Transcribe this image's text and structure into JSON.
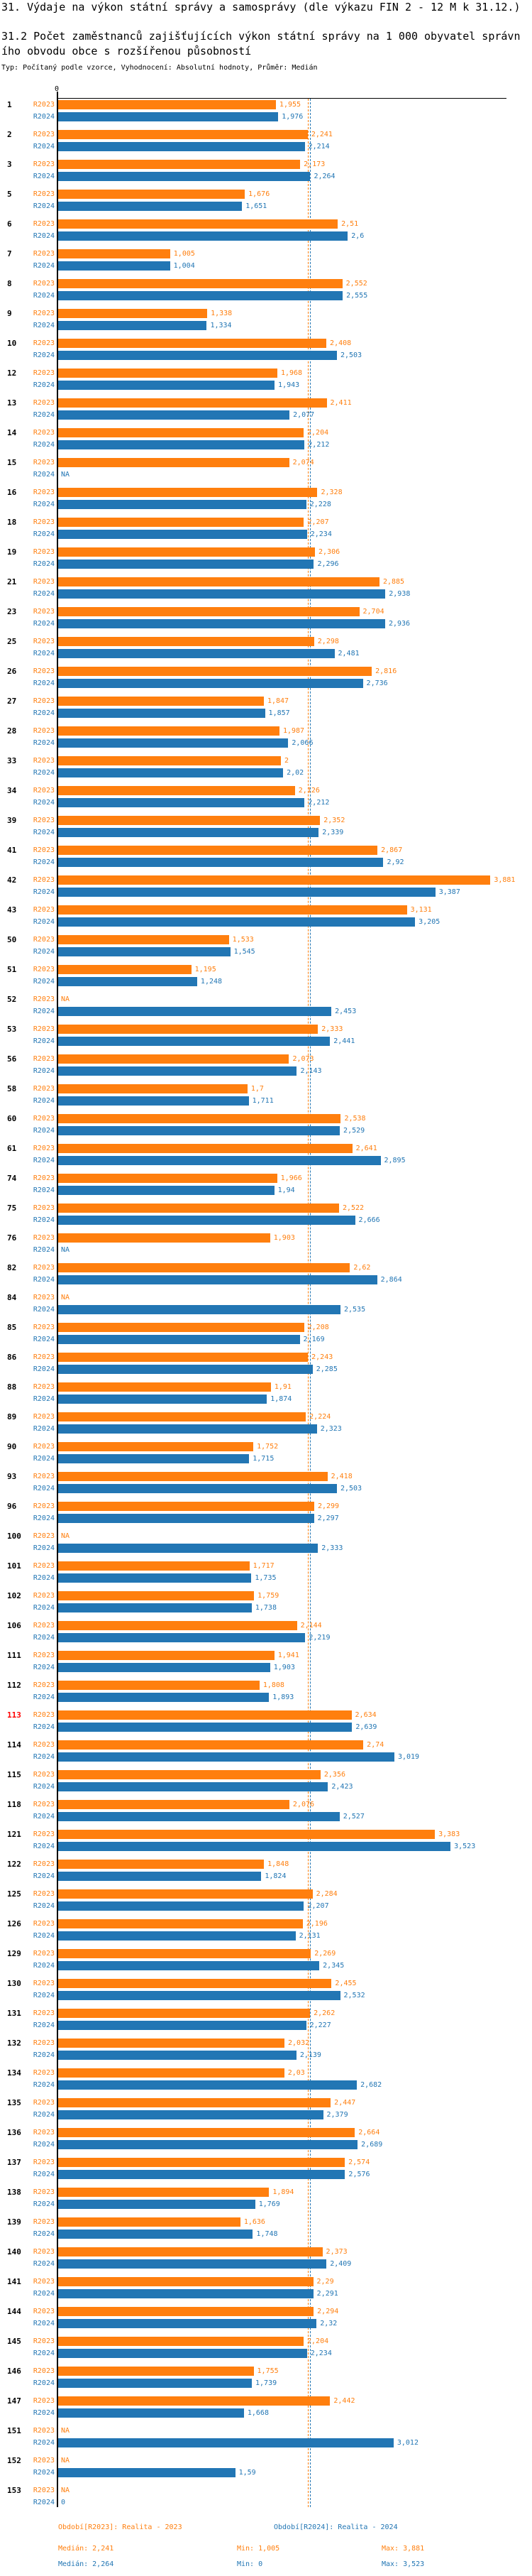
{
  "header": {
    "title_line1": "31. Výdaje na výkon státní správy a samosprávy (dle výkazu FIN 2 - 12 M k 31.12.)",
    "subtitle_line1": "31.2 Počet zaměstnanců zajišťujících výkon státní správy na 1 000 obyvatel správn",
    "subtitle_line2": "ího obvodu obce s rozšířenou působností",
    "meta": "Typ: Počítaný podle vzorce, Vyhodnocení: Absolutní hodnoty, Průměr: Medián"
  },
  "colors": {
    "r2023": "#ff7f0e",
    "r2024": "#2276b4",
    "highlight_id": "#ff0000",
    "axis": "#000000"
  },
  "chart_data": {
    "type": "bar",
    "orientation": "horizontal",
    "axis_origin_label": "0",
    "series_labels": [
      "R2023",
      "R2024"
    ],
    "medians": {
      "R2023": 2.241,
      "R2024": 2.264
    },
    "xlim": [
      0,
      4
    ],
    "rows": [
      {
        "id": "1",
        "r2023": "1,955",
        "r2024": "1,976"
      },
      {
        "id": "2",
        "r2023": "2,241",
        "r2024": "2,214"
      },
      {
        "id": "3",
        "r2023": "2,173",
        "r2024": "2,264"
      },
      {
        "id": "5",
        "r2023": "1,676",
        "r2024": "1,651"
      },
      {
        "id": "6",
        "r2023": "2,51",
        "r2024": "2,6"
      },
      {
        "id": "7",
        "r2023": "1,005",
        "r2024": "1,004"
      },
      {
        "id": "8",
        "r2023": "2,552",
        "r2024": "2,555"
      },
      {
        "id": "9",
        "r2023": "1,338",
        "r2024": "1,334"
      },
      {
        "id": "10",
        "r2023": "2,408",
        "r2024": "2,503"
      },
      {
        "id": "12",
        "r2023": "1,968",
        "r2024": "1,943"
      },
      {
        "id": "13",
        "r2023": "2,411",
        "r2024": "2,077"
      },
      {
        "id": "14",
        "r2023": "2,204",
        "r2024": "2,212"
      },
      {
        "id": "15",
        "r2023": "2,074",
        "r2024": "NA"
      },
      {
        "id": "16",
        "r2023": "2,328",
        "r2024": "2,228"
      },
      {
        "id": "18",
        "r2023": "2,207",
        "r2024": "2,234"
      },
      {
        "id": "19",
        "r2023": "2,306",
        "r2024": "2,296"
      },
      {
        "id": "21",
        "r2023": "2,885",
        "r2024": "2,938"
      },
      {
        "id": "23",
        "r2023": "2,704",
        "r2024": "2,936"
      },
      {
        "id": "25",
        "r2023": "2,298",
        "r2024": "2,481"
      },
      {
        "id": "26",
        "r2023": "2,816",
        "r2024": "2,736"
      },
      {
        "id": "27",
        "r2023": "1,847",
        "r2024": "1,857"
      },
      {
        "id": "28",
        "r2023": "1,987",
        "r2024": "2,066"
      },
      {
        "id": "33",
        "r2023": "2",
        "r2024": "2,02"
      },
      {
        "id": "34",
        "r2023": "2,126",
        "r2024": "2,212"
      },
      {
        "id": "39",
        "r2023": "2,352",
        "r2024": "2,339"
      },
      {
        "id": "41",
        "r2023": "2,867",
        "r2024": "2,92"
      },
      {
        "id": "42",
        "r2023": "3,881",
        "r2024": "3,387"
      },
      {
        "id": "43",
        "r2023": "3,131",
        "r2024": "3,205"
      },
      {
        "id": "50",
        "r2023": "1,533",
        "r2024": "1,545"
      },
      {
        "id": "51",
        "r2023": "1,195",
        "r2024": "1,248"
      },
      {
        "id": "52",
        "r2023": "NA",
        "r2024": "2,453"
      },
      {
        "id": "53",
        "r2023": "2,333",
        "r2024": "2,441"
      },
      {
        "id": "56",
        "r2023": "2,073",
        "r2024": "2,143"
      },
      {
        "id": "58",
        "r2023": "1,7",
        "r2024": "1,711"
      },
      {
        "id": "60",
        "r2023": "2,538",
        "r2024": "2,529"
      },
      {
        "id": "61",
        "r2023": "2,641",
        "r2024": "2,895"
      },
      {
        "id": "74",
        "r2023": "1,966",
        "r2024": "1,94"
      },
      {
        "id": "75",
        "r2023": "2,522",
        "r2024": "2,666"
      },
      {
        "id": "76",
        "r2023": "1,903",
        "r2024": "NA"
      },
      {
        "id": "82",
        "r2023": "2,62",
        "r2024": "2,864"
      },
      {
        "id": "84",
        "r2023": "NA",
        "r2024": "2,535"
      },
      {
        "id": "85",
        "r2023": "2,208",
        "r2024": "2,169"
      },
      {
        "id": "86",
        "r2023": "2,243",
        "r2024": "2,285"
      },
      {
        "id": "88",
        "r2023": "1,91",
        "r2024": "1,874"
      },
      {
        "id": "89",
        "r2023": "2,224",
        "r2024": "2,323"
      },
      {
        "id": "90",
        "r2023": "1,752",
        "r2024": "1,715"
      },
      {
        "id": "93",
        "r2023": "2,418",
        "r2024": "2,503"
      },
      {
        "id": "96",
        "r2023": "2,299",
        "r2024": "2,297"
      },
      {
        "id": "100",
        "r2023": "NA",
        "r2024": "2,333"
      },
      {
        "id": "101",
        "r2023": "1,717",
        "r2024": "1,735"
      },
      {
        "id": "102",
        "r2023": "1,759",
        "r2024": "1,738"
      },
      {
        "id": "106",
        "r2023": "2,144",
        "r2024": "2,219"
      },
      {
        "id": "111",
        "r2023": "1,941",
        "r2024": "1,903"
      },
      {
        "id": "112",
        "r2023": "1,808",
        "r2024": "1,893"
      },
      {
        "id": "113",
        "r2023": "2,634",
        "r2024": "2,639",
        "highlight": true
      },
      {
        "id": "114",
        "r2023": "2,74",
        "r2024": "3,019"
      },
      {
        "id": "115",
        "r2023": "2,356",
        "r2024": "2,423"
      },
      {
        "id": "118",
        "r2023": "2,076",
        "r2024": "2,527"
      },
      {
        "id": "121",
        "r2023": "3,383",
        "r2024": "3,523"
      },
      {
        "id": "122",
        "r2023": "1,848",
        "r2024": "1,824"
      },
      {
        "id": "125",
        "r2023": "2,284",
        "r2024": "2,207"
      },
      {
        "id": "126",
        "r2023": "2,196",
        "r2024": "2,131"
      },
      {
        "id": "129",
        "r2023": "2,269",
        "r2024": "2,345"
      },
      {
        "id": "130",
        "r2023": "2,455",
        "r2024": "2,532"
      },
      {
        "id": "131",
        "r2023": "2,262",
        "r2024": "2,227"
      },
      {
        "id": "132",
        "r2023": "2,032",
        "r2024": "2,139"
      },
      {
        "id": "134",
        "r2023": "2,03",
        "r2024": "2,682"
      },
      {
        "id": "135",
        "r2023": "2,447",
        "r2024": "2,379"
      },
      {
        "id": "136",
        "r2023": "2,664",
        "r2024": "2,689"
      },
      {
        "id": "137",
        "r2023": "2,574",
        "r2024": "2,576"
      },
      {
        "id": "138",
        "r2023": "1,894",
        "r2024": "1,769"
      },
      {
        "id": "139",
        "r2023": "1,636",
        "r2024": "1,748"
      },
      {
        "id": "140",
        "r2023": "2,373",
        "r2024": "2,409"
      },
      {
        "id": "141",
        "r2023": "2,29",
        "r2024": "2,291"
      },
      {
        "id": "144",
        "r2023": "2,294",
        "r2024": "2,32"
      },
      {
        "id": "145",
        "r2023": "2,204",
        "r2024": "2,234"
      },
      {
        "id": "146",
        "r2023": "1,755",
        "r2024": "1,739"
      },
      {
        "id": "147",
        "r2023": "2,442",
        "r2024": "1,668"
      },
      {
        "id": "151",
        "r2023": "NA",
        "r2024": "3,012"
      },
      {
        "id": "152",
        "r2023": "NA",
        "r2024": "1,59"
      },
      {
        "id": "153",
        "r2023": "NA",
        "r2024": "0"
      }
    ]
  },
  "footer": {
    "legend_r2023": "Období[R2023]: Realita - 2023",
    "legend_r2024": "Období[R2024]: Realita - 2024",
    "stats_r2023": {
      "median": "Medián: 2,241",
      "min": "Min: 1,005",
      "max": "Max: 3,881"
    },
    "stats_r2024": {
      "median": "Medián: 2,264",
      "min": "Min: 0",
      "max": "Max: 3,523"
    }
  }
}
